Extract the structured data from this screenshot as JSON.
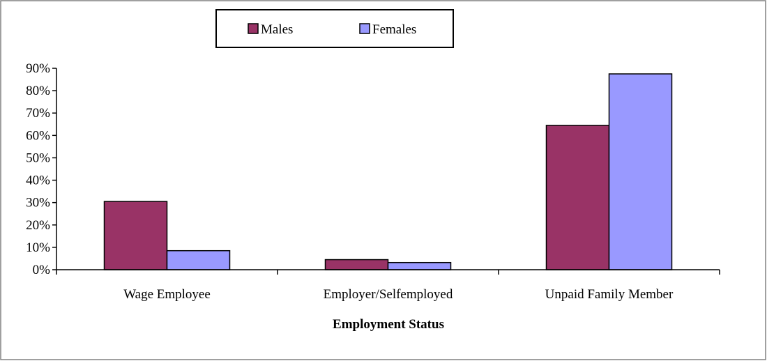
{
  "chart_data": {
    "type": "bar",
    "title": "",
    "xlabel": "Employment Status",
    "ylabel": "",
    "categories": [
      "Wage Employee",
      "Employer/Selfemployed",
      "Unpaid Family Member"
    ],
    "series": [
      {
        "name": "Males",
        "values": [
          30.5,
          4.5,
          64.5
        ],
        "color": "#993366"
      },
      {
        "name": "Females",
        "values": [
          8.5,
          3.2,
          87.5
        ],
        "color": "#9999FF"
      }
    ],
    "ylim": [
      0,
      90
    ],
    "yticks": [
      0,
      10,
      20,
      30,
      40,
      50,
      60,
      70,
      80,
      90
    ],
    "ytick_labels": [
      "0%",
      "10%",
      "20%",
      "30%",
      "40%",
      "50%",
      "60%",
      "70%",
      "80%",
      "90%"
    ],
    "grid": false,
    "legend_position": "top-center",
    "border_color": "#808080"
  }
}
